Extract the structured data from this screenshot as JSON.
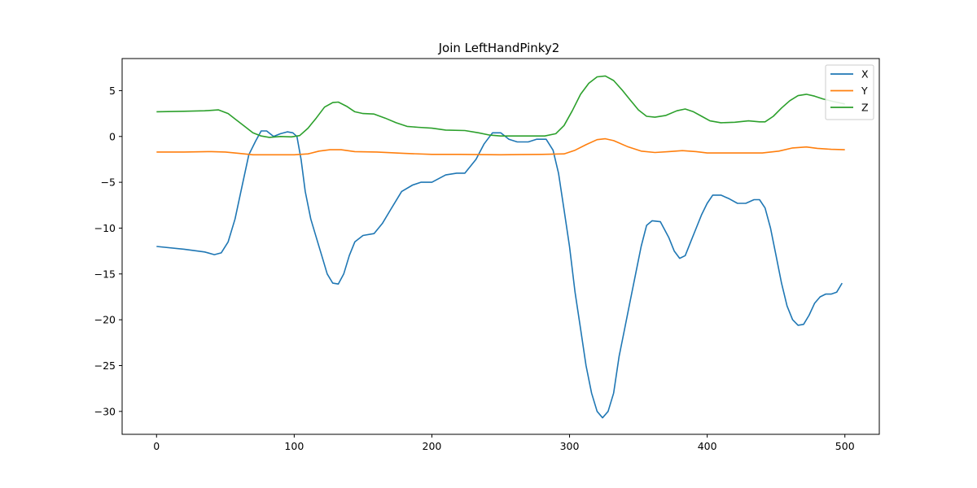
{
  "chart_data": {
    "type": "line",
    "title": "Join LeftHandPinky2",
    "xlabel": "",
    "ylabel": "",
    "xlim": [
      -25,
      525
    ],
    "ylim": [
      -32.5,
      8.5
    ],
    "xticks": [
      0,
      100,
      200,
      300,
      400,
      500
    ],
    "yticks": [
      5,
      0,
      -5,
      -10,
      -15,
      -20,
      -25,
      -30
    ],
    "ytick_labels": [
      "5",
      "0",
      "−5",
      "−10",
      "−15",
      "−20",
      "−25",
      "−30"
    ],
    "grid": false,
    "legend_position": "top-right",
    "series": [
      {
        "name": "X",
        "color": "#1f77b4",
        "points": [
          [
            0,
            -12
          ],
          [
            20,
            -12.3
          ],
          [
            35,
            -12.6
          ],
          [
            42,
            -12.9
          ],
          [
            47,
            -12.7
          ],
          [
            52,
            -11.5
          ],
          [
            57,
            -9
          ],
          [
            62,
            -5.5
          ],
          [
            67,
            -2
          ],
          [
            72,
            -0.5
          ],
          [
            76,
            0.6
          ],
          [
            80,
            0.6
          ],
          [
            85,
            0
          ],
          [
            90,
            0.3
          ],
          [
            95,
            0.5
          ],
          [
            99,
            0.4
          ],
          [
            102,
            0
          ],
          [
            105,
            -2.5
          ],
          [
            108,
            -6
          ],
          [
            112,
            -9
          ],
          [
            116,
            -11
          ],
          [
            120,
            -13
          ],
          [
            124,
            -15
          ],
          [
            128,
            -16
          ],
          [
            132,
            -16.1
          ],
          [
            136,
            -15
          ],
          [
            140,
            -13
          ],
          [
            144,
            -11.5
          ],
          [
            150,
            -10.8
          ],
          [
            158,
            -10.6
          ],
          [
            164,
            -9.5
          ],
          [
            170,
            -8
          ],
          [
            178,
            -6
          ],
          [
            186,
            -5.3
          ],
          [
            192,
            -5
          ],
          [
            200,
            -5
          ],
          [
            210,
            -4.2
          ],
          [
            218,
            -4
          ],
          [
            224,
            -4
          ],
          [
            232,
            -2.5
          ],
          [
            238,
            -0.8
          ],
          [
            244,
            0.4
          ],
          [
            250,
            0.4
          ],
          [
            256,
            -0.3
          ],
          [
            262,
            -0.6
          ],
          [
            270,
            -0.6
          ],
          [
            276,
            -0.3
          ],
          [
            283,
            -0.3
          ],
          [
            288,
            -1.5
          ],
          [
            292,
            -4
          ],
          [
            296,
            -8
          ],
          [
            300,
            -12
          ],
          [
            304,
            -17
          ],
          [
            308,
            -21
          ],
          [
            312,
            -25
          ],
          [
            316,
            -28
          ],
          [
            320,
            -30
          ],
          [
            324,
            -30.7
          ],
          [
            328,
            -30
          ],
          [
            332,
            -28
          ],
          [
            336,
            -24
          ],
          [
            340,
            -21
          ],
          [
            344,
            -18
          ],
          [
            348,
            -15
          ],
          [
            352,
            -12
          ],
          [
            356,
            -9.7
          ],
          [
            360,
            -9.2
          ],
          [
            366,
            -9.3
          ],
          [
            372,
            -11
          ],
          [
            376,
            -12.5
          ],
          [
            380,
            -13.3
          ],
          [
            384,
            -13
          ],
          [
            388,
            -11.5
          ],
          [
            392,
            -10
          ],
          [
            396,
            -8.5
          ],
          [
            400,
            -7.3
          ],
          [
            404,
            -6.4
          ],
          [
            410,
            -6.4
          ],
          [
            416,
            -6.8
          ],
          [
            422,
            -7.3
          ],
          [
            428,
            -7.3
          ],
          [
            434,
            -6.9
          ],
          [
            438,
            -6.9
          ],
          [
            442,
            -7.8
          ],
          [
            446,
            -10
          ],
          [
            450,
            -13
          ],
          [
            454,
            -16
          ],
          [
            458,
            -18.5
          ],
          [
            462,
            -20
          ],
          [
            466,
            -20.6
          ],
          [
            470,
            -20.5
          ],
          [
            474,
            -19.5
          ],
          [
            478,
            -18.2
          ],
          [
            482,
            -17.5
          ],
          [
            486,
            -17.2
          ],
          [
            490,
            -17.2
          ],
          [
            494,
            -17
          ],
          [
            498,
            -16
          ]
        ]
      },
      {
        "name": "Y",
        "color": "#ff7f0e",
        "points": [
          [
            0,
            -1.7
          ],
          [
            20,
            -1.7
          ],
          [
            40,
            -1.65
          ],
          [
            50,
            -1.7
          ],
          [
            60,
            -1.85
          ],
          [
            70,
            -2
          ],
          [
            80,
            -2
          ],
          [
            100,
            -2
          ],
          [
            110,
            -1.9
          ],
          [
            118,
            -1.6
          ],
          [
            126,
            -1.45
          ],
          [
            134,
            -1.45
          ],
          [
            144,
            -1.65
          ],
          [
            160,
            -1.7
          ],
          [
            180,
            -1.85
          ],
          [
            200,
            -1.95
          ],
          [
            220,
            -1.95
          ],
          [
            250,
            -2
          ],
          [
            280,
            -1.95
          ],
          [
            296,
            -1.9
          ],
          [
            304,
            -1.5
          ],
          [
            312,
            -0.9
          ],
          [
            320,
            -0.35
          ],
          [
            326,
            -0.25
          ],
          [
            332,
            -0.45
          ],
          [
            342,
            -1.1
          ],
          [
            352,
            -1.6
          ],
          [
            362,
            -1.75
          ],
          [
            372,
            -1.65
          ],
          [
            382,
            -1.55
          ],
          [
            392,
            -1.65
          ],
          [
            400,
            -1.8
          ],
          [
            420,
            -1.8
          ],
          [
            440,
            -1.8
          ],
          [
            452,
            -1.6
          ],
          [
            462,
            -1.25
          ],
          [
            472,
            -1.15
          ],
          [
            480,
            -1.3
          ],
          [
            490,
            -1.4
          ],
          [
            500,
            -1.45
          ]
        ]
      },
      {
        "name": "Z",
        "color": "#2ca02c",
        "points": [
          [
            0,
            2.7
          ],
          [
            20,
            2.75
          ],
          [
            35,
            2.8
          ],
          [
            45,
            2.9
          ],
          [
            52,
            2.5
          ],
          [
            58,
            1.8
          ],
          [
            64,
            1.1
          ],
          [
            70,
            0.4
          ],
          [
            76,
            0.05
          ],
          [
            82,
            -0.1
          ],
          [
            90,
            0
          ],
          [
            98,
            -0.05
          ],
          [
            104,
            0.1
          ],
          [
            110,
            0.9
          ],
          [
            116,
            2
          ],
          [
            122,
            3.2
          ],
          [
            128,
            3.7
          ],
          [
            132,
            3.75
          ],
          [
            138,
            3.3
          ],
          [
            144,
            2.7
          ],
          [
            150,
            2.5
          ],
          [
            158,
            2.45
          ],
          [
            166,
            2
          ],
          [
            174,
            1.5
          ],
          [
            182,
            1.1
          ],
          [
            190,
            1
          ],
          [
            200,
            0.9
          ],
          [
            210,
            0.7
          ],
          [
            224,
            0.65
          ],
          [
            234,
            0.4
          ],
          [
            242,
            0.15
          ],
          [
            250,
            0.05
          ],
          [
            260,
            0.05
          ],
          [
            272,
            0.05
          ],
          [
            282,
            0.05
          ],
          [
            290,
            0.3
          ],
          [
            296,
            1.2
          ],
          [
            302,
            2.8
          ],
          [
            308,
            4.6
          ],
          [
            314,
            5.8
          ],
          [
            320,
            6.5
          ],
          [
            326,
            6.6
          ],
          [
            332,
            6.1
          ],
          [
            338,
            5.1
          ],
          [
            344,
            4
          ],
          [
            350,
            2.9
          ],
          [
            356,
            2.2
          ],
          [
            362,
            2.1
          ],
          [
            370,
            2.3
          ],
          [
            378,
            2.8
          ],
          [
            384,
            3
          ],
          [
            390,
            2.7
          ],
          [
            396,
            2.2
          ],
          [
            402,
            1.7
          ],
          [
            410,
            1.5
          ],
          [
            420,
            1.55
          ],
          [
            430,
            1.7
          ],
          [
            438,
            1.6
          ],
          [
            442,
            1.6
          ],
          [
            448,
            2.2
          ],
          [
            454,
            3.1
          ],
          [
            460,
            3.9
          ],
          [
            466,
            4.45
          ],
          [
            472,
            4.6
          ],
          [
            478,
            4.4
          ],
          [
            484,
            4.1
          ],
          [
            492,
            3.8
          ],
          [
            500,
            3.55
          ]
        ]
      }
    ]
  }
}
